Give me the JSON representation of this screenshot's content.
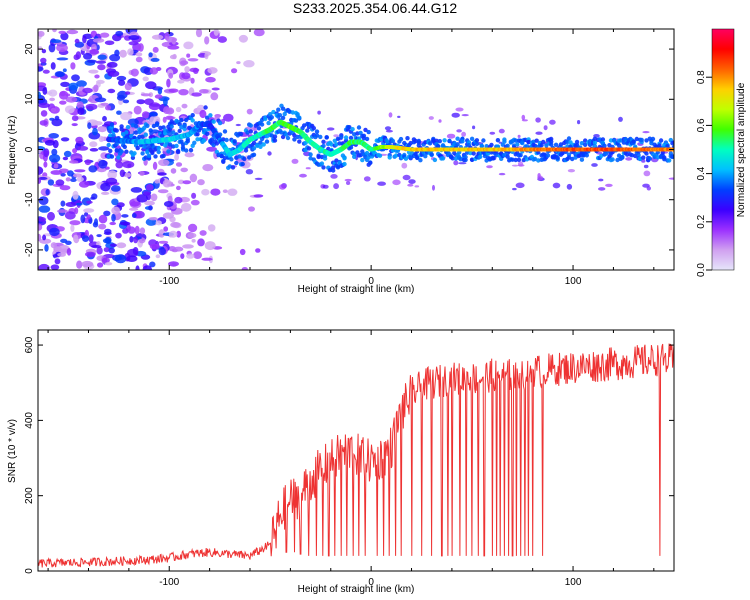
{
  "title": "S233.2025.354.06.44.G12",
  "chart_data": [
    {
      "type": "heatmap",
      "xlabel": "Height of straight line (km)",
      "ylabel": "Frequency (Hz)",
      "xlim": [
        -165,
        150
      ],
      "ylim": [
        -24,
        24
      ],
      "x_ticks": [
        -100,
        0,
        100
      ],
      "y_ticks": [
        -20,
        -10,
        0,
        10,
        20
      ],
      "colorbar": {
        "label": "Normalized spectral amplitude",
        "range": [
          0,
          1
        ],
        "ticks": [
          "0.0",
          "0.2",
          "0.4",
          "0.6",
          "0.8"
        ],
        "tick_values": [
          0,
          0.2,
          0.4,
          0.6,
          0.8
        ],
        "colors": [
          "#e6e6fa",
          "#d0a0f0",
          "#9b30ff",
          "#3a00ff",
          "#0040ff",
          "#00c0ff",
          "#00ffc0",
          "#40ff00",
          "#c0ff00",
          "#ffd000",
          "#ff6000",
          "#ff0000",
          "#ff0060"
        ]
      },
      "ridge": {
        "x": [
          -130,
          -115,
          -100,
          -90,
          -85,
          -80,
          -75,
          -70,
          -65,
          -60,
          -55,
          -50,
          -45,
          -40,
          -35,
          -30,
          -25,
          -20,
          -15,
          -10,
          -5,
          0,
          5,
          10,
          20,
          40,
          60,
          80,
          100,
          120,
          150
        ],
        "y": [
          2,
          1.5,
          2,
          3,
          5,
          5,
          2,
          -1,
          0,
          2,
          3,
          4,
          5.5,
          4.5,
          3.5,
          1.5,
          0,
          -1,
          0,
          1.5,
          1.5,
          0,
          0.5,
          0.5,
          0,
          0,
          0,
          0,
          0,
          0,
          0
        ],
        "amplitude": [
          0.3,
          0.4,
          0.45,
          0.4,
          0.35,
          0.3,
          0.35,
          0.45,
          0.45,
          0.5,
          0.5,
          0.55,
          0.55,
          0.6,
          0.55,
          0.5,
          0.5,
          0.5,
          0.5,
          0.55,
          0.55,
          0.5,
          0.6,
          0.7,
          0.75,
          0.75,
          0.75,
          0.8,
          0.85,
          0.85,
          0.8
        ]
      }
    },
    {
      "type": "line",
      "xlabel": "Height of straight line (km)",
      "ylabel": "SNR (10 * v/v)",
      "xlim": [
        -165,
        150
      ],
      "ylim": [
        0,
        640
      ],
      "x_ticks": [
        -100,
        0,
        100
      ],
      "y_ticks": [
        0,
        200,
        400,
        600
      ],
      "color": "#ee3333",
      "series": [
        {
          "x": [
            -165,
            -150,
            -130,
            -110,
            -100,
            -90,
            -80,
            -70,
            -60,
            -50,
            -45,
            -40,
            -35,
            -30,
            -25,
            -20,
            -15,
            -10,
            -5,
            0,
            5,
            10,
            15,
            20,
            25,
            30,
            40,
            50,
            60,
            70,
            80,
            90,
            100,
            110,
            120,
            130,
            140,
            150
          ],
          "values": [
            20,
            22,
            25,
            30,
            35,
            45,
            50,
            45,
            40,
            70,
            150,
            190,
            200,
            240,
            270,
            290,
            310,
            320,
            300,
            290,
            300,
            330,
            420,
            470,
            490,
            500,
            510,
            510,
            520,
            520,
            530,
            535,
            540,
            545,
            550,
            555,
            560,
            560
          ]
        }
      ],
      "dropouts_x": [
        -47,
        -42,
        -38,
        -35,
        -31,
        -27,
        -24,
        -21,
        -18,
        -15,
        -12,
        -9,
        -6,
        -3,
        3,
        6,
        9,
        12,
        15,
        20,
        25,
        30,
        35,
        38,
        40,
        44,
        47,
        50,
        53,
        56,
        60,
        62,
        64,
        66,
        68,
        70,
        72,
        74,
        76,
        78,
        80,
        85,
        143
      ],
      "dropouts_y": [
        60,
        50,
        50,
        45,
        40,
        40,
        40,
        40,
        40,
        40,
        40,
        40,
        40,
        40,
        40,
        40,
        40,
        40,
        40,
        40,
        40,
        40,
        40,
        40,
        40,
        40,
        40,
        40,
        40,
        40,
        40,
        40,
        40,
        40,
        40,
        40,
        40,
        40,
        40,
        40,
        40,
        40,
        40
      ]
    }
  ]
}
